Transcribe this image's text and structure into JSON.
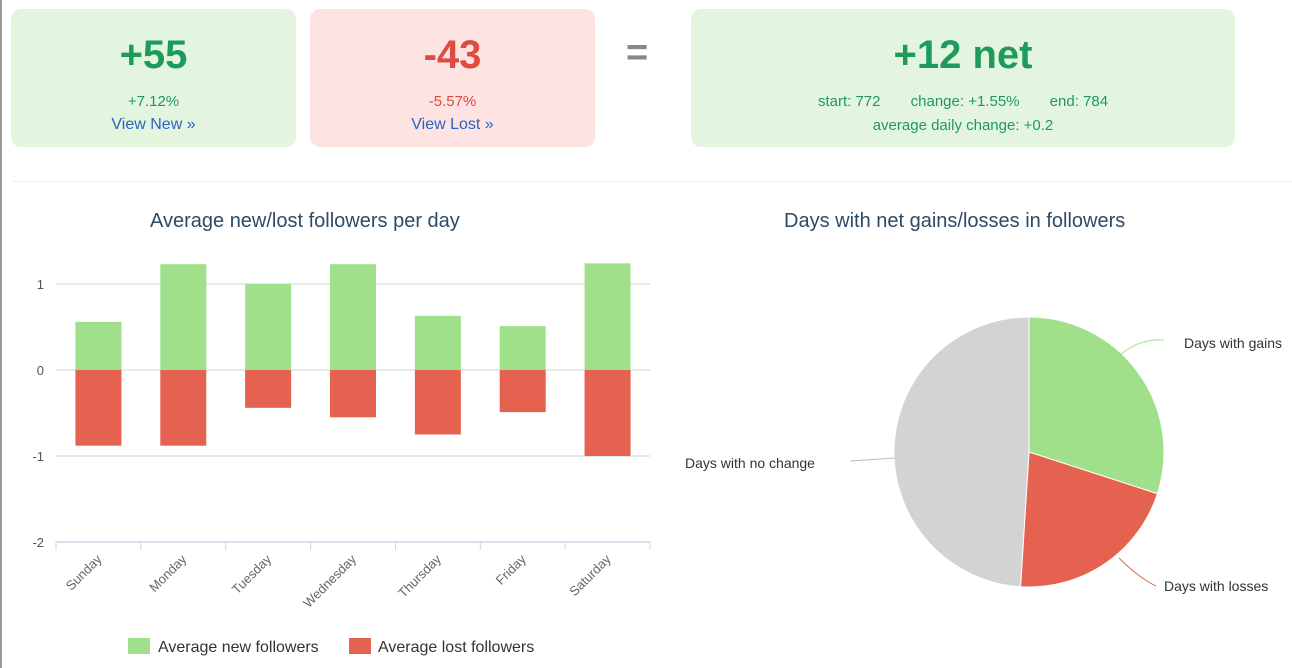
{
  "cards": {
    "new": {
      "value": "+55",
      "percent": "+7.12%",
      "link": "View New »"
    },
    "lost": {
      "value": "-43",
      "percent": "-5.57%",
      "link": "View Lost »"
    },
    "equals": "=",
    "net": {
      "value": "+12 net",
      "start": "start: 772",
      "change": "change: +1.55%",
      "end": "end: 784",
      "avg": "average daily change: +0.2"
    }
  },
  "colors": {
    "gain": "#a0e08a",
    "loss": "#e56150",
    "neutral": "#d3d3d3"
  },
  "chart_data": [
    {
      "type": "bar",
      "stacked": true,
      "title": "Average new/lost followers per day",
      "categories": [
        "Sunday",
        "Monday",
        "Tuesday",
        "Wednesday",
        "Thursday",
        "Friday",
        "Saturday"
      ],
      "series": [
        {
          "name": "Average new followers",
          "values": [
            0.56,
            1.23,
            1.0,
            1.23,
            0.63,
            0.51,
            1.24
          ]
        },
        {
          "name": "Average lost followers",
          "values": [
            -0.88,
            -0.88,
            -0.44,
            -0.55,
            -0.75,
            -0.49,
            -1.0
          ]
        }
      ],
      "yticks": [
        "1",
        "0",
        "-1",
        "-2"
      ],
      "ylim": [
        -2,
        1.25
      ],
      "legend": "bottom"
    },
    {
      "type": "pie",
      "title": "Days with net gains/losses in followers",
      "slices": [
        {
          "label": "Days with gains",
          "value": 30
        },
        {
          "label": "Days with losses",
          "value": 21
        },
        {
          "label": "Days with no change",
          "value": 49
        }
      ]
    }
  ]
}
